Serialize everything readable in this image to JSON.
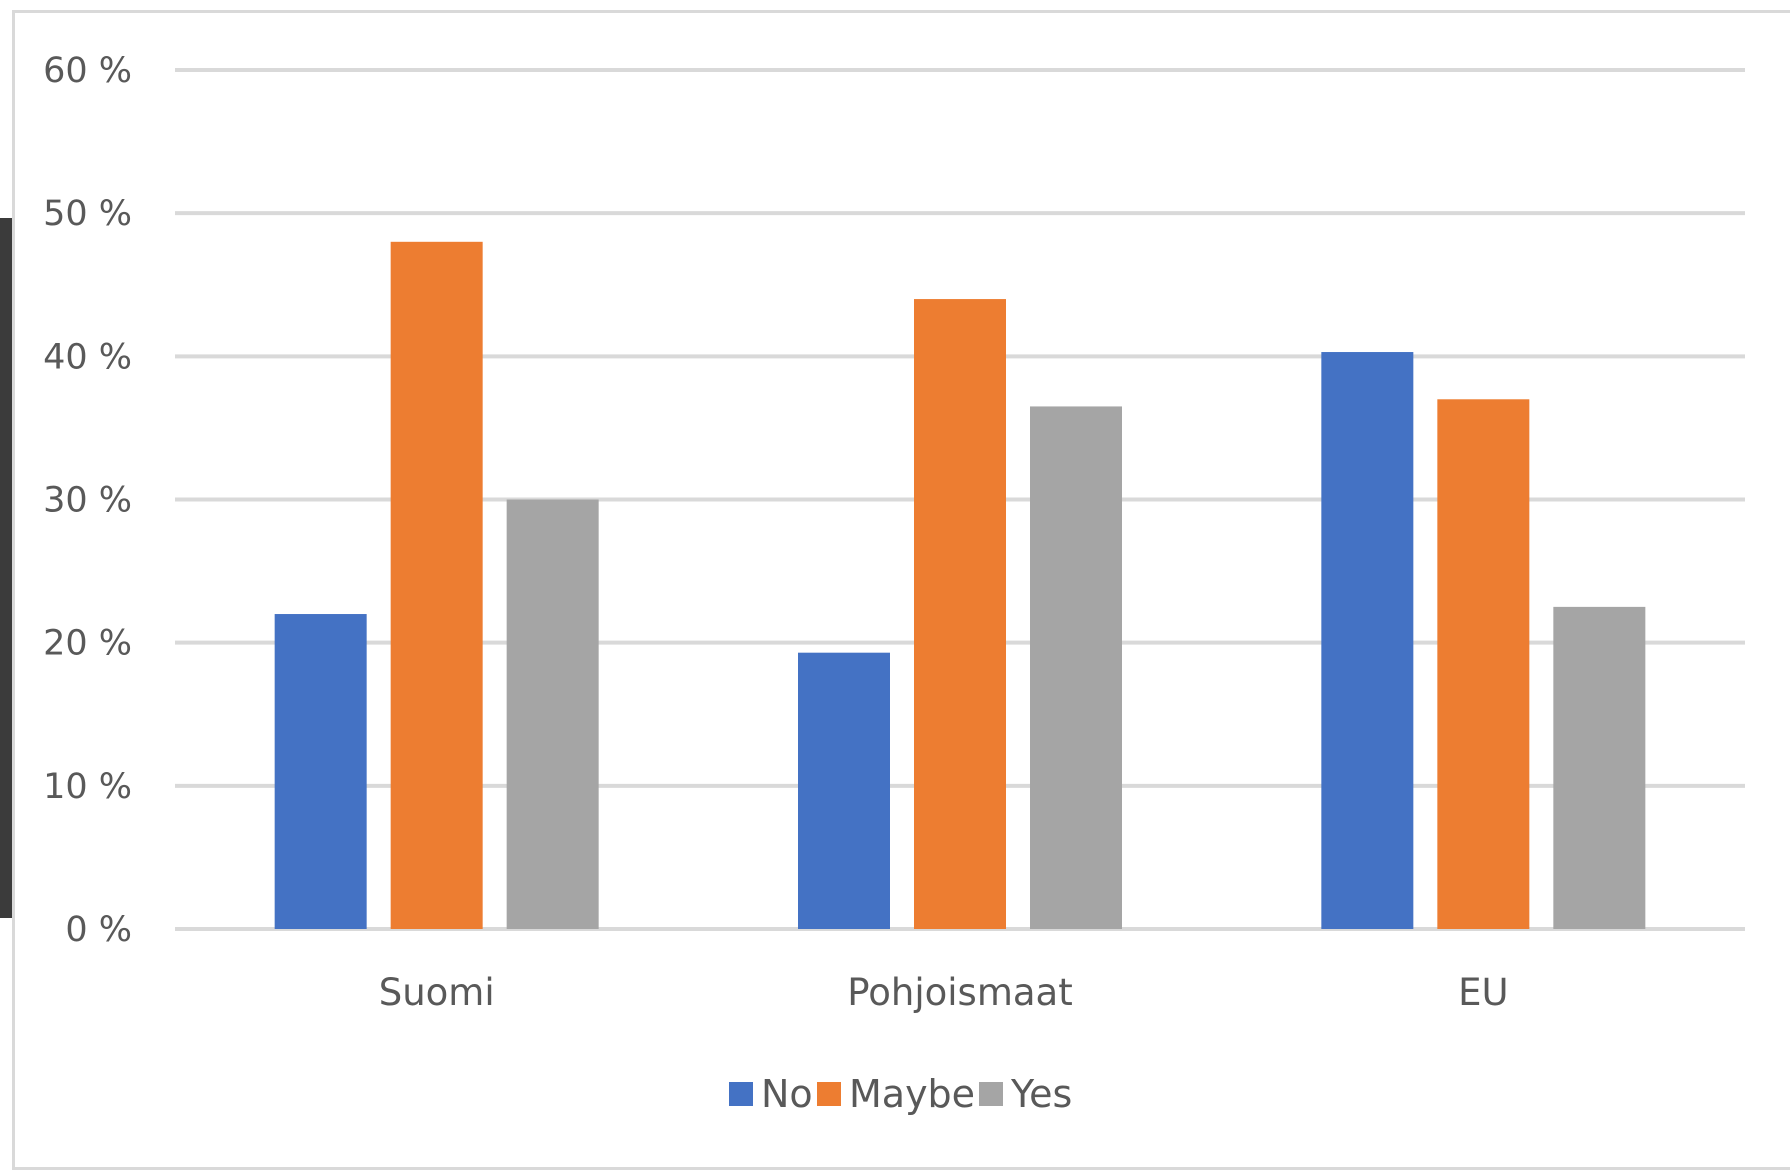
{
  "chart_data": {
    "type": "bar",
    "categories": [
      "Suomi",
      "Pohjoismaat",
      "EU"
    ],
    "series": [
      {
        "name": "No",
        "color": "#4472C4",
        "values": [
          22,
          19.3,
          40.3
        ]
      },
      {
        "name": "Maybe",
        "color": "#ED7D31",
        "values": [
          48,
          44,
          37
        ]
      },
      {
        "name": "Yes",
        "color": "#A5A5A5",
        "values": [
          30,
          36.5,
          22.5
        ]
      }
    ],
    "ylim": [
      0,
      60
    ],
    "yticks": [
      0,
      10,
      20,
      30,
      40,
      50,
      60
    ],
    "ytick_labels": [
      "0 %",
      "10 %",
      "20 %",
      "30 %",
      "40 %",
      "50 %",
      "60 %"
    ],
    "grid": true,
    "legend_position": "bottom",
    "title": "",
    "xlabel": "",
    "ylabel": ""
  }
}
